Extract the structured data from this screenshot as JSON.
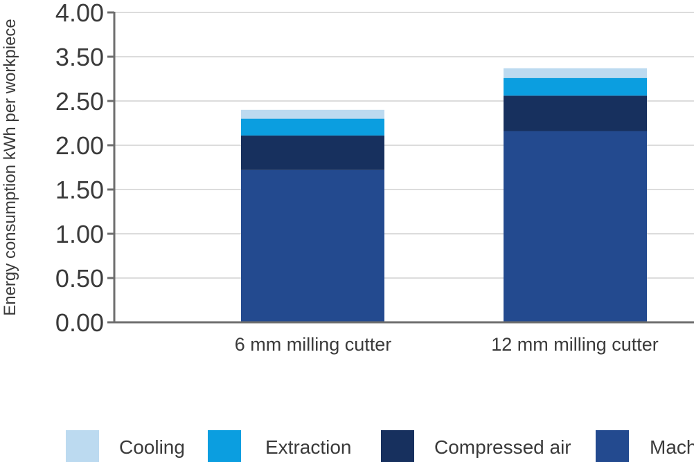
{
  "chart_data": {
    "type": "bar",
    "stacked": true,
    "title": "",
    "xlabel": "",
    "ylabel": "Energy consumption kWh per workpiece",
    "ylim": [
      0,
      4.0
    ],
    "y_ticks": [
      "0.00",
      "0.50",
      "1.00",
      "1.50",
      "2.00",
      "2.50",
      "3.50",
      "4.00"
    ],
    "categories": [
      "6 mm milling cutter",
      "12 mm milling cutter"
    ],
    "series": [
      {
        "name": "Machine",
        "color": "#234a8f",
        "values": [
          1.72,
          2.16
        ]
      },
      {
        "name": "Compressed air",
        "color": "#17305e",
        "values": [
          0.39,
          0.4
        ]
      },
      {
        "name": "Extraction",
        "color": "#0b9ee0",
        "values": [
          0.19,
          0.2
        ]
      },
      {
        "name": "Cooling",
        "color": "#bcdaf0",
        "values": [
          0.1,
          0.11
        ]
      }
    ],
    "legend": {
      "position": "bottom",
      "items": [
        "Cooling",
        "Extraction",
        "Compressed air",
        "Mach"
      ]
    },
    "grid": true
  }
}
